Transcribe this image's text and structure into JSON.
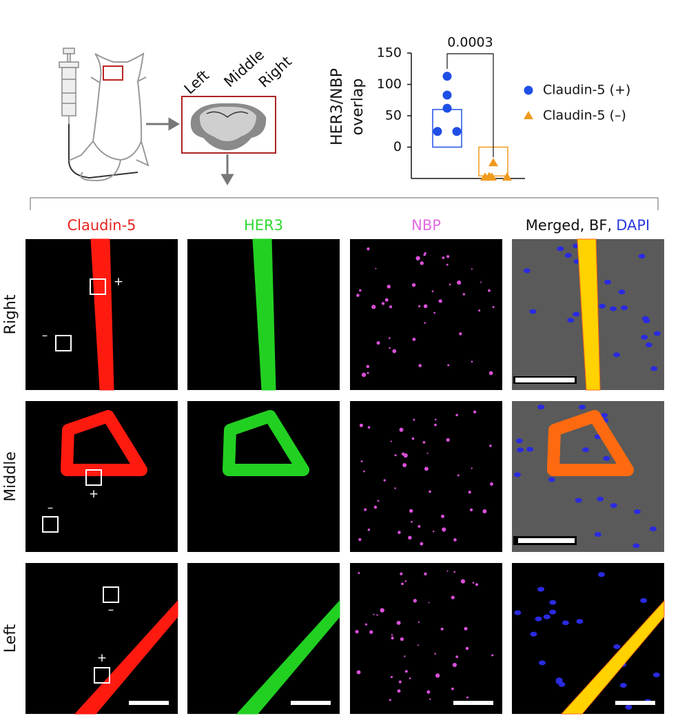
{
  "diagram": {
    "brain_labels": [
      "Left",
      "Middle",
      "Right"
    ]
  },
  "chart_data": {
    "type": "bar-dot",
    "ylabel": [
      "HER3/NBP",
      "overlap"
    ],
    "categories": [
      null,
      null
    ],
    "series": [
      {
        "name": "Claudin-5 (+)",
        "color": "#1f4fe6",
        "marker": "circle",
        "bar": 60,
        "points": [
          113,
          83,
          62,
          25,
          25
        ]
      },
      {
        "name": "Claudin-5 (–)",
        "color": "#f09a1e",
        "marker": "triangle",
        "bar": -46,
        "points": [
          -25,
          -47,
          -48,
          -48,
          -48
        ]
      }
    ],
    "annotation": "0.0003",
    "ylim": [
      -50,
      150
    ],
    "yticks": [
      0,
      50,
      100,
      150
    ],
    "legend": "right"
  },
  "panels": {
    "columns": [
      "Claudin-5",
      "HER3",
      "NBP"
    ],
    "merged_title": [
      "Merged, BF,",
      "DAPI"
    ],
    "rows": [
      "Right",
      "Middle",
      "Left"
    ],
    "plus": "+",
    "minus": "–"
  }
}
